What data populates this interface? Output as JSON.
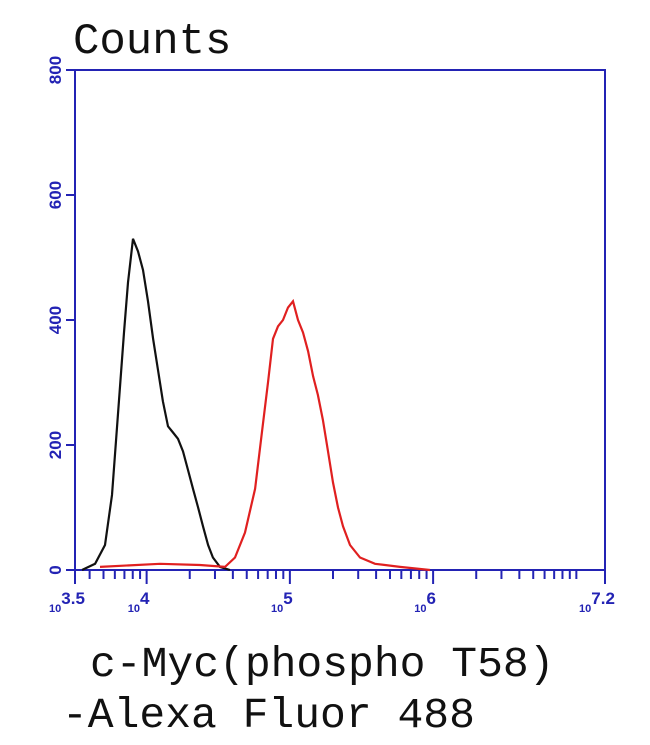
{
  "chart_data": {
    "type": "histogram-line",
    "title": "Counts",
    "xlabel": [
      "c-Myc(phospho T58)",
      "-Alexa Fluor 488"
    ],
    "xscale": "log",
    "axis_color": "#2323b4",
    "xlim": [
      3162.28,
      15848932
    ],
    "xticks": [
      {
        "value": 3162.28,
        "label": "10",
        "exponent": "3.5"
      },
      {
        "value": 10000,
        "label": "10",
        "exponent": "4"
      },
      {
        "value": 100000,
        "label": "10",
        "exponent": "5"
      },
      {
        "value": 1000000,
        "label": "10",
        "exponent": "6"
      },
      {
        "value": 15848932,
        "label": "10",
        "exponent": "7.2"
      }
    ],
    "xminorticks": [
      4000,
      5000,
      6000,
      7000,
      8000,
      9000,
      20000,
      30000,
      40000,
      50000,
      60000,
      70000,
      80000,
      90000,
      200000,
      300000,
      400000,
      500000,
      600000,
      700000,
      800000,
      900000,
      2000000,
      3000000,
      4000000,
      5000000,
      6000000,
      7000000,
      8000000,
      9000000,
      10000000
    ],
    "ylim": [
      0,
      800
    ],
    "yticks": [
      0,
      200,
      400,
      600,
      800
    ],
    "series": [
      {
        "color": "#111111",
        "x": [
          3540,
          4365,
          5120,
          5730,
          6310,
          6950,
          7410,
          8035,
          8710,
          9440,
          10230,
          11090,
          12000,
          13000,
          14090,
          15280,
          16560,
          17950,
          19450,
          21090,
          22860,
          24770,
          26850,
          29040,
          32510,
          38190
        ],
        "values": [
          0,
          10,
          40,
          120,
          250,
          380,
          460,
          530,
          510,
          480,
          430,
          370,
          320,
          270,
          230,
          220,
          210,
          190,
          160,
          130,
          100,
          70,
          40,
          20,
          5,
          0
        ]
      },
      {
        "color": "#e02020",
        "x": [
          4730,
          12390,
          23600,
          35240,
          41400,
          48640,
          57150,
          63830,
          70310,
          76210,
          82600,
          89540,
          97050,
          105200,
          114000,
          123600,
          134000,
          145200,
          157000,
          170200,
          184500,
          200000,
          216800,
          235000,
          263000,
          309000,
          392700,
          587500,
          950600
        ],
        "values": [
          5,
          10,
          8,
          5,
          20,
          60,
          130,
          220,
          300,
          370,
          390,
          400,
          420,
          430,
          400,
          380,
          350,
          310,
          280,
          240,
          190,
          140,
          100,
          70,
          40,
          20,
          10,
          5,
          0
        ]
      }
    ]
  }
}
